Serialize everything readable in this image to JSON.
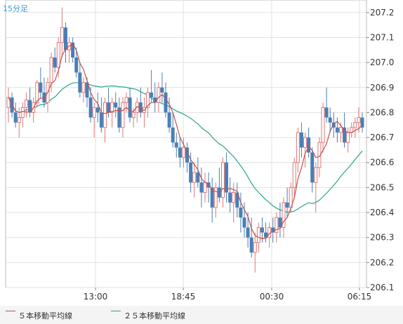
{
  "timeframe_label": "15分足",
  "colors": {
    "up": "#e07878",
    "down": "#4a7fb5",
    "ma5": "#c0504d",
    "ma25": "#2aa58a",
    "grid": "#e0e0e0",
    "axis": "#888888",
    "text": "#333333"
  },
  "legend": {
    "ma5": "５本移動平均線",
    "ma25": "２５本移動平均線"
  },
  "chart_data": {
    "type": "candlestick",
    "x_ticks": [
      "13:00",
      "18:45",
      "00:30",
      "06:15"
    ],
    "y_ticks": [
      "207.2",
      "207.1",
      "207.0",
      "206.9",
      "206.8",
      "206.7",
      "206.6",
      "206.5",
      "206.4",
      "206.3",
      "206.2",
      "206.1"
    ],
    "ylim": [
      206.1,
      207.25
    ],
    "grid": true,
    "candles": [
      [
        206.82,
        206.9,
        206.76,
        206.86
      ],
      [
        206.86,
        206.88,
        206.78,
        206.8
      ],
      [
        206.8,
        206.84,
        206.74,
        206.76
      ],
      [
        206.76,
        206.82,
        206.7,
        206.78
      ],
      [
        206.78,
        206.84,
        206.74,
        206.82
      ],
      [
        206.82,
        206.88,
        206.78,
        206.85
      ],
      [
        206.85,
        206.9,
        206.78,
        206.8
      ],
      [
        206.8,
        206.86,
        206.76,
        206.84
      ],
      [
        206.84,
        206.93,
        206.82,
        206.92
      ],
      [
        206.92,
        206.98,
        206.86,
        206.88
      ],
      [
        206.88,
        206.94,
        206.82,
        206.84
      ],
      [
        206.84,
        206.94,
        206.8,
        206.92
      ],
      [
        206.92,
        207.04,
        206.88,
        207.02
      ],
      [
        207.02,
        207.06,
        206.96,
        206.98
      ],
      [
        206.98,
        207.1,
        206.94,
        207.08
      ],
      [
        207.08,
        207.22,
        207.02,
        207.14
      ],
      [
        207.14,
        207.16,
        207.0,
        207.05
      ],
      [
        207.05,
        207.1,
        207.0,
        207.08
      ],
      [
        207.08,
        207.1,
        207.0,
        207.02
      ],
      [
        207.02,
        207.06,
        206.94,
        206.96
      ],
      [
        206.96,
        207.0,
        206.86,
        206.88
      ],
      [
        206.88,
        206.94,
        206.84,
        206.92
      ],
      [
        206.92,
        206.94,
        206.82,
        206.86
      ],
      [
        206.86,
        206.9,
        206.76,
        206.78
      ],
      [
        206.78,
        206.84,
        206.7,
        206.82
      ],
      [
        206.82,
        206.88,
        206.76,
        206.8
      ],
      [
        206.8,
        206.86,
        206.72,
        206.74
      ],
      [
        206.74,
        206.86,
        206.68,
        206.84
      ],
      [
        206.84,
        206.9,
        206.78,
        206.8
      ],
      [
        206.8,
        206.86,
        206.74,
        206.84
      ],
      [
        206.84,
        206.88,
        206.78,
        206.82
      ],
      [
        206.82,
        206.86,
        206.72,
        206.74
      ],
      [
        206.74,
        206.86,
        206.7,
        206.84
      ],
      [
        206.84,
        206.88,
        206.8,
        206.86
      ],
      [
        206.86,
        206.9,
        206.76,
        206.78
      ],
      [
        206.78,
        206.82,
        206.74,
        206.8
      ],
      [
        206.8,
        206.86,
        206.76,
        206.84
      ],
      [
        206.84,
        206.9,
        206.78,
        206.8
      ],
      [
        206.8,
        206.86,
        206.74,
        206.82
      ],
      [
        206.82,
        206.9,
        206.78,
        206.88
      ],
      [
        206.88,
        206.97,
        206.84,
        206.86
      ],
      [
        206.86,
        206.92,
        206.8,
        206.84
      ],
      [
        206.84,
        206.92,
        206.8,
        206.9
      ],
      [
        206.9,
        206.96,
        206.84,
        206.88
      ],
      [
        206.88,
        206.92,
        206.78,
        206.8
      ],
      [
        206.8,
        206.86,
        206.72,
        206.74
      ],
      [
        206.74,
        206.8,
        206.66,
        206.68
      ],
      [
        206.68,
        206.72,
        206.62,
        206.66
      ],
      [
        206.66,
        206.7,
        206.58,
        206.62
      ],
      [
        206.62,
        206.7,
        206.58,
        206.66
      ],
      [
        206.66,
        206.68,
        206.56,
        206.6
      ],
      [
        206.6,
        206.64,
        206.48,
        206.52
      ],
      [
        206.52,
        206.6,
        206.46,
        206.56
      ],
      [
        206.56,
        206.62,
        206.5,
        206.52
      ],
      [
        206.52,
        206.58,
        206.42,
        206.48
      ],
      [
        206.48,
        206.56,
        206.44,
        206.52
      ],
      [
        206.52,
        206.56,
        206.44,
        206.5
      ],
      [
        206.5,
        206.54,
        206.36,
        206.42
      ],
      [
        206.42,
        206.52,
        206.38,
        206.5
      ],
      [
        206.5,
        206.58,
        206.44,
        206.46
      ],
      [
        206.46,
        206.62,
        206.42,
        206.6
      ],
      [
        206.6,
        206.64,
        206.44,
        206.48
      ],
      [
        206.48,
        206.54,
        206.4,
        206.44
      ],
      [
        206.44,
        206.52,
        206.36,
        206.48
      ],
      [
        206.48,
        206.52,
        206.38,
        206.42
      ],
      [
        206.42,
        206.48,
        206.32,
        206.38
      ],
      [
        206.38,
        206.44,
        206.3,
        206.34
      ],
      [
        206.34,
        206.4,
        206.26,
        206.3
      ],
      [
        206.3,
        206.38,
        206.22,
        206.24
      ],
      [
        206.24,
        206.32,
        206.16,
        206.28
      ],
      [
        206.28,
        206.36,
        206.24,
        206.34
      ],
      [
        206.34,
        206.38,
        206.28,
        206.32
      ],
      [
        206.32,
        206.36,
        206.28,
        206.3
      ],
      [
        206.3,
        206.36,
        206.26,
        206.34
      ],
      [
        206.34,
        206.38,
        206.28,
        206.32
      ],
      [
        206.32,
        206.4,
        206.28,
        206.38
      ],
      [
        206.38,
        206.44,
        206.3,
        206.34
      ],
      [
        206.34,
        206.46,
        206.3,
        206.44
      ],
      [
        206.44,
        206.5,
        206.38,
        206.42
      ],
      [
        206.42,
        206.52,
        206.4,
        206.5
      ],
      [
        206.5,
        206.62,
        206.46,
        206.6
      ],
      [
        206.6,
        206.74,
        206.56,
        206.72
      ],
      [
        206.72,
        206.76,
        206.62,
        206.66
      ],
      [
        206.66,
        206.72,
        206.58,
        206.7
      ],
      [
        206.7,
        206.74,
        206.62,
        206.64
      ],
      [
        206.64,
        206.66,
        206.48,
        206.52
      ],
      [
        206.52,
        206.6,
        206.4,
        206.58
      ],
      [
        206.58,
        206.7,
        206.54,
        206.68
      ],
      [
        206.68,
        206.84,
        206.64,
        206.82
      ],
      [
        206.82,
        206.9,
        206.76,
        206.78
      ],
      [
        206.78,
        206.82,
        206.72,
        206.76
      ],
      [
        206.76,
        206.8,
        206.7,
        206.74
      ],
      [
        206.74,
        206.78,
        206.68,
        206.72
      ],
      [
        206.72,
        206.76,
        206.68,
        206.74
      ],
      [
        206.74,
        206.8,
        206.66,
        206.68
      ],
      [
        206.68,
        206.74,
        206.64,
        206.72
      ],
      [
        206.72,
        206.76,
        206.7,
        206.74
      ],
      [
        206.74,
        206.78,
        206.7,
        206.76
      ],
      [
        206.76,
        206.82,
        206.72,
        206.78
      ],
      [
        206.78,
        206.8,
        206.72,
        206.74
      ]
    ]
  }
}
